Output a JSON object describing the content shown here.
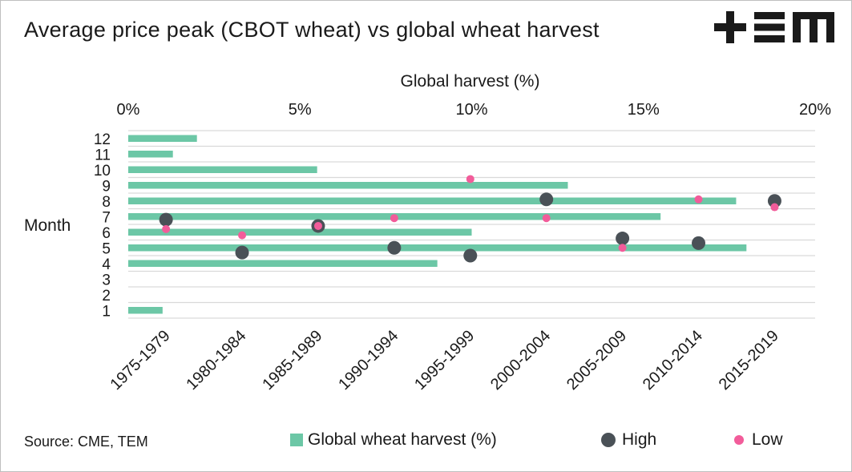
{
  "title": "Average price peak (CBOT wheat) vs global wheat harvest",
  "source": "Source: CME, TEM",
  "logo_text": "+≡m",
  "colors": {
    "bar": "#6cc7a6",
    "high": "#4a5157",
    "low": "#f25c9a",
    "grid": "#d9d9d9"
  },
  "chart_data": {
    "type": "bar",
    "orientation": "horizontal",
    "top_axis": {
      "label": "Global harvest (%)",
      "lim": [
        0,
        20
      ],
      "ticks": [
        0,
        5,
        10,
        15,
        20
      ],
      "tick_labels": [
        "0%",
        "5%",
        "10%",
        "15%",
        "20%"
      ]
    },
    "y_axis": {
      "label": "Month",
      "lim": [
        0.5,
        12.5
      ],
      "ticks": [
        1,
        2,
        3,
        4,
        5,
        6,
        7,
        8,
        9,
        10,
        11,
        12
      ],
      "tick_labels": [
        "1",
        "2",
        "3",
        "4",
        "5",
        "6",
        "7",
        "8",
        "9",
        "10",
        "11",
        "12"
      ]
    },
    "bottom_axis": {
      "tick_labels": [
        "1975-1979",
        "1980-1984",
        "1985-1989",
        "1990-1994",
        "1995-1999",
        "2000-2004",
        "2005-2009",
        "2010-2014",
        "2015-2019"
      ]
    },
    "grid": true,
    "legend_position": "bottom",
    "series": [
      {
        "name": "Global wheat harvest (%)",
        "type": "bar",
        "months": [
          1,
          2,
          3,
          4,
          5,
          6,
          7,
          8,
          9,
          10,
          11,
          12
        ],
        "values": [
          1.0,
          0,
          0,
          9.0,
          18.0,
          10.0,
          15.5,
          17.7,
          12.8,
          5.5,
          1.3,
          2.0
        ]
      },
      {
        "name": "High",
        "type": "scatter",
        "periods": [
          "1975-1979",
          "1980-1984",
          "1985-1989",
          "1990-1994",
          "1995-1999",
          "2000-2004",
          "2005-2009",
          "2010-2014",
          "2015-2019"
        ],
        "months": [
          6.8,
          4.7,
          6.4,
          5.0,
          4.5,
          8.1,
          5.6,
          5.3,
          8.0
        ]
      },
      {
        "name": "Low",
        "type": "scatter",
        "periods": [
          "1975-1979",
          "1980-1984",
          "1985-1989",
          "1990-1994",
          "1995-1999",
          "2000-2004",
          "2005-2009",
          "2010-2014",
          "2015-2019"
        ],
        "months": [
          6.2,
          5.8,
          6.4,
          6.9,
          9.4,
          6.9,
          5.0,
          8.1,
          7.6
        ]
      }
    ]
  }
}
